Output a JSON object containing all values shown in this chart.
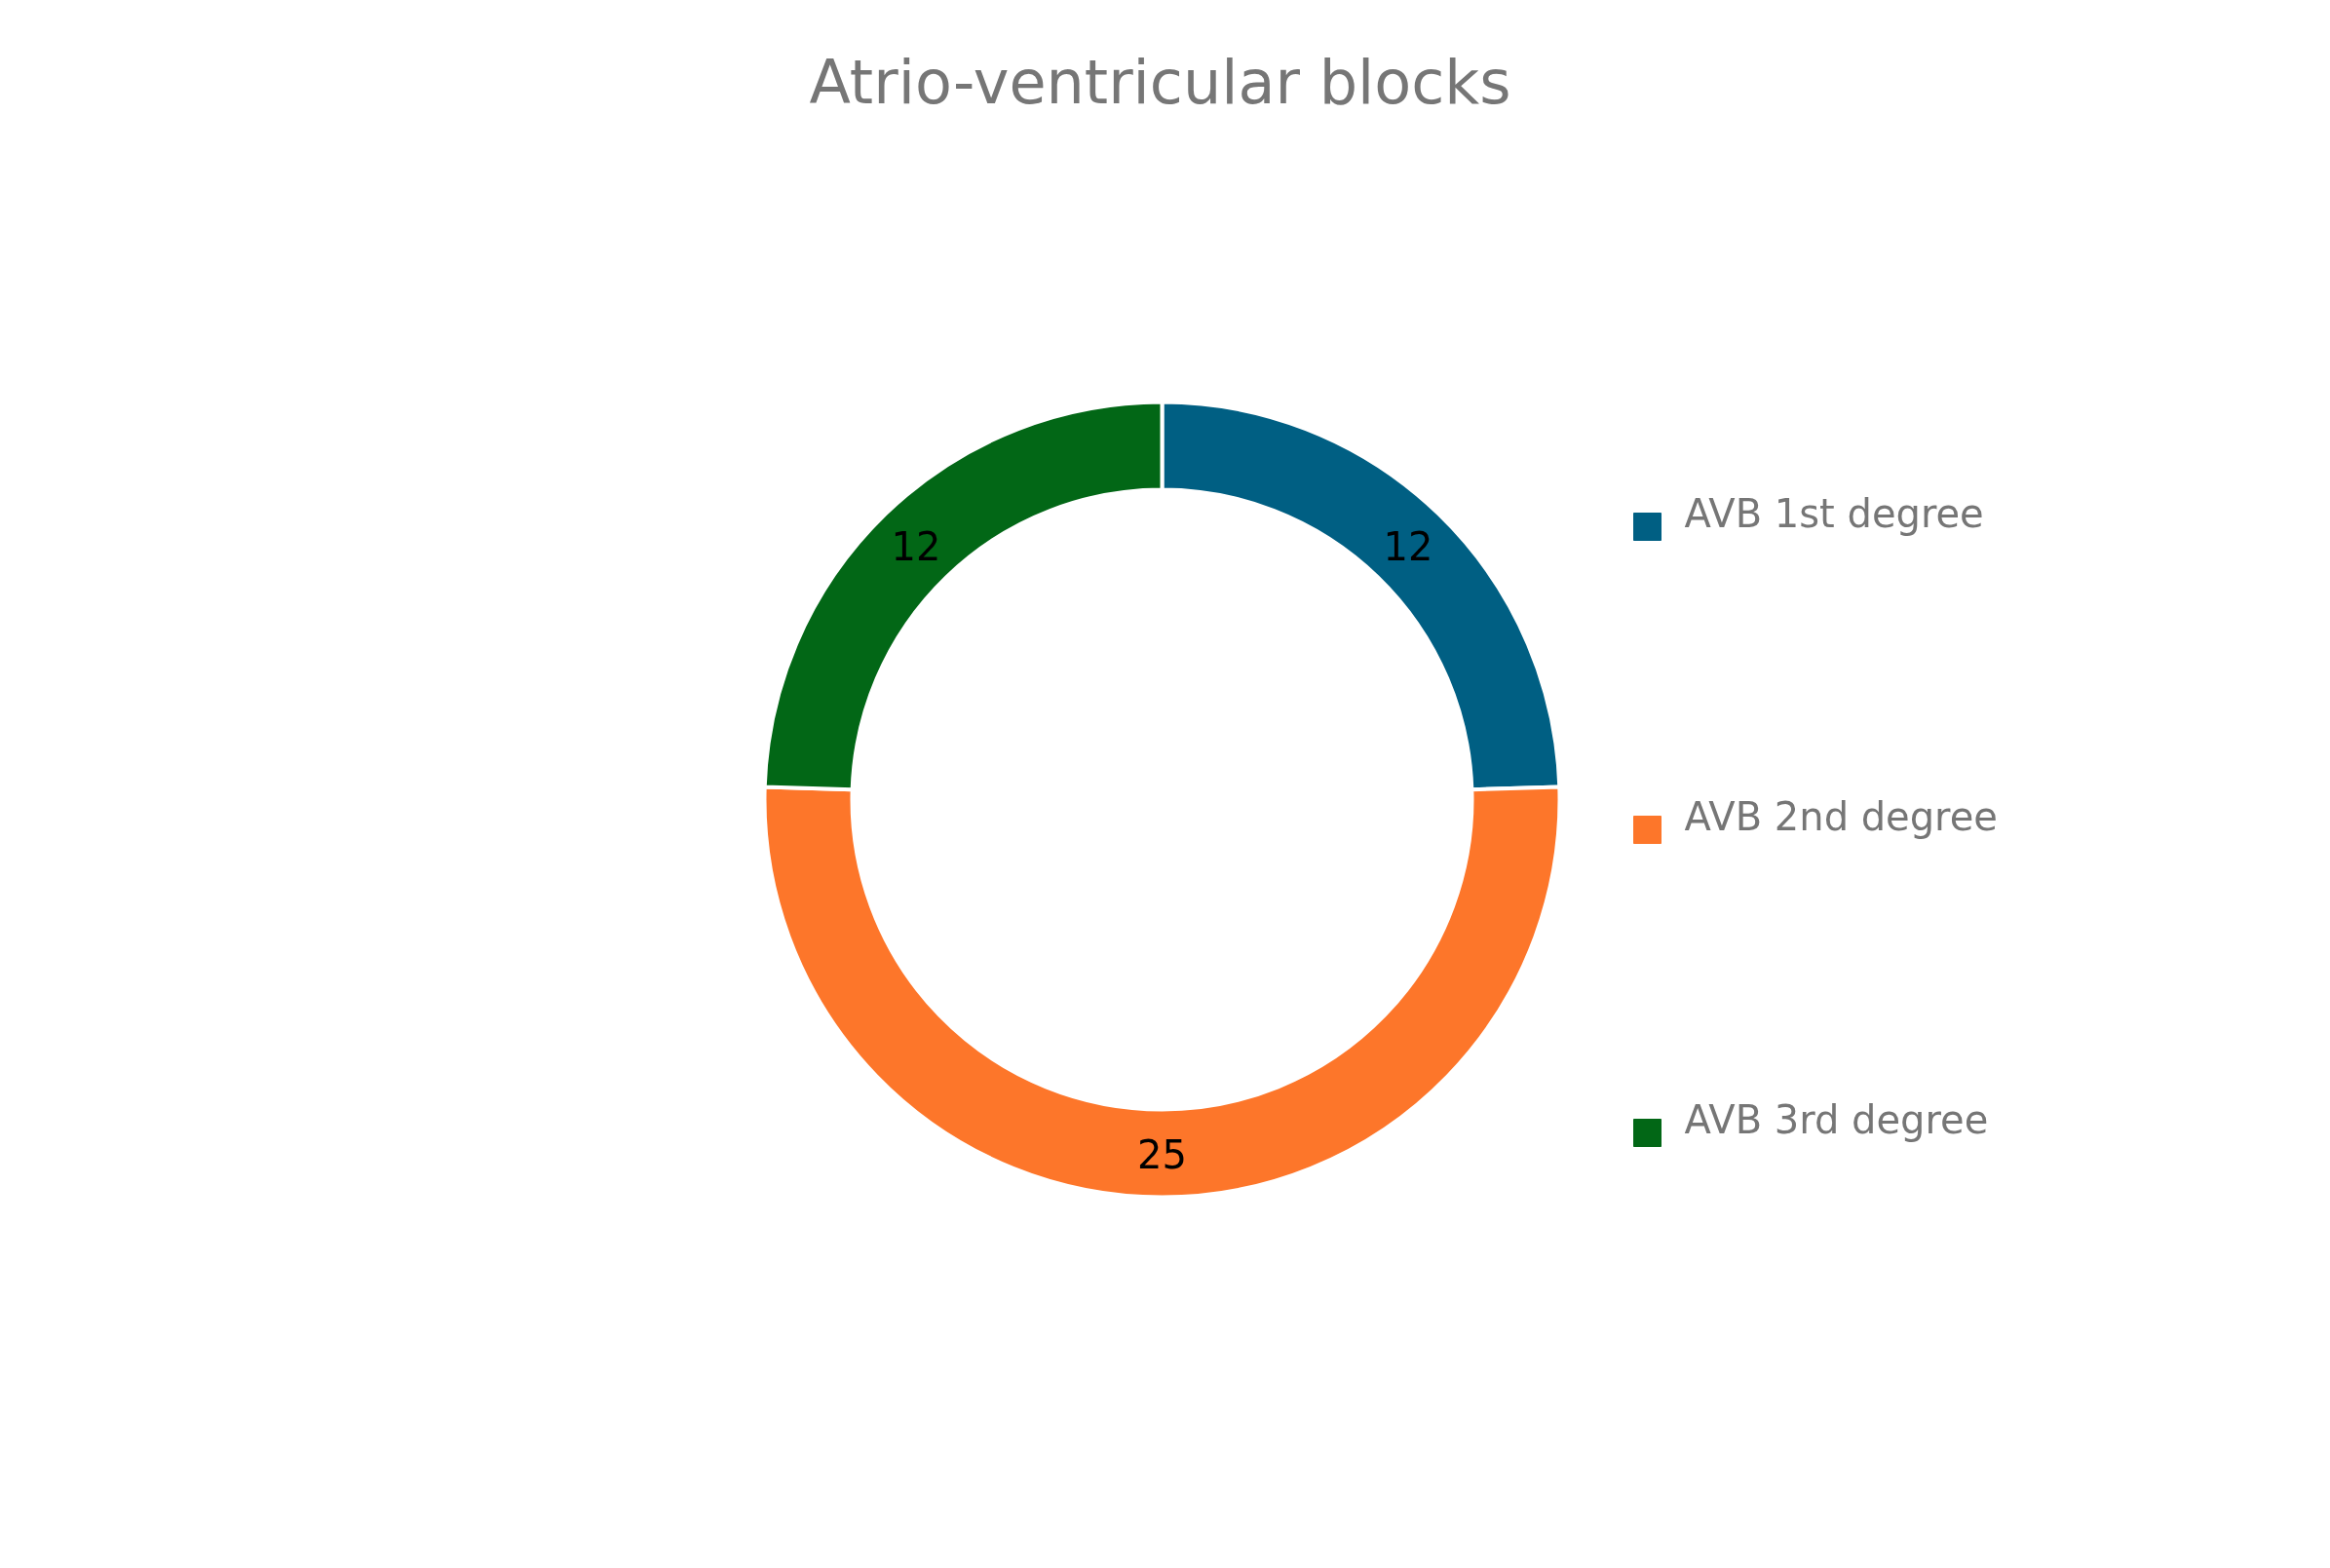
{
  "chart_data": {
    "type": "donut",
    "title": "Atrio-ventricular blocks",
    "categories": [
      "AVB 1st degree",
      "AVB 2nd degree",
      "AVB 3rd degree"
    ],
    "values": [
      12,
      25,
      12
    ],
    "colors": [
      "#005f83",
      "#fd762a",
      "#026716"
    ],
    "data_labels": true,
    "legend": "right"
  }
}
